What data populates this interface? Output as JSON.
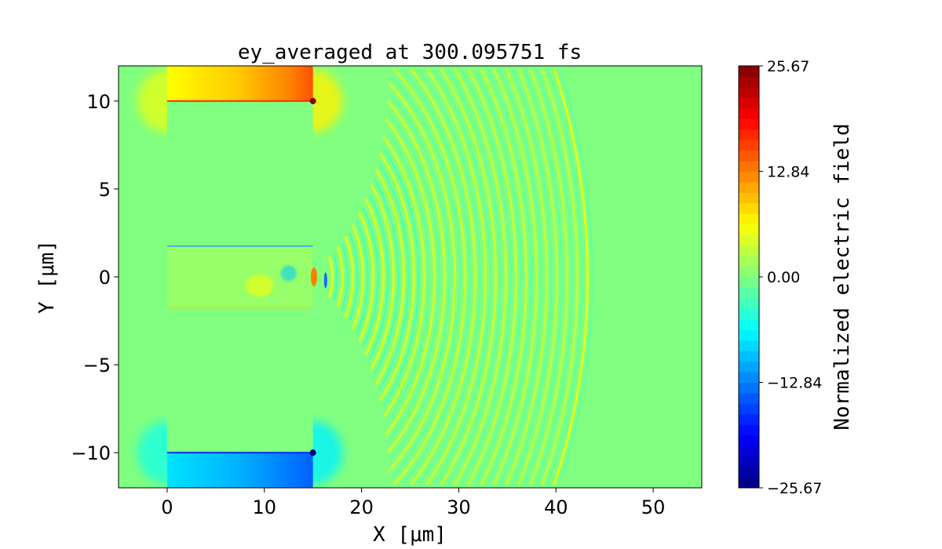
{
  "chart_data": {
    "type": "heatmap",
    "title": "ey_averaged at 300.095751 fs",
    "xlabel": "X [μm]",
    "ylabel": "Y [μm]",
    "xlim": [
      -5,
      55
    ],
    "ylim": [
      -12,
      12
    ],
    "xticks": [
      0,
      10,
      20,
      30,
      40,
      50
    ],
    "xtick_labels": [
      "0",
      "10",
      "20",
      "30",
      "40",
      "50"
    ],
    "yticks": [
      -10,
      -5,
      0,
      5,
      10
    ],
    "ytick_labels": [
      "−10",
      "−5",
      "0",
      "5",
      "10"
    ],
    "colormap": "jet",
    "clim": [
      -25.67,
      25.67
    ],
    "colorbar": {
      "label": "Normalized electric field",
      "ticks": [
        -25.67,
        -12.84,
        0.0,
        12.84,
        25.67
      ],
      "tick_labels": [
        "−25.67",
        "−12.84",
        "0.00",
        "12.84",
        "25.67"
      ],
      "levels": 40
    },
    "grid": false
  }
}
